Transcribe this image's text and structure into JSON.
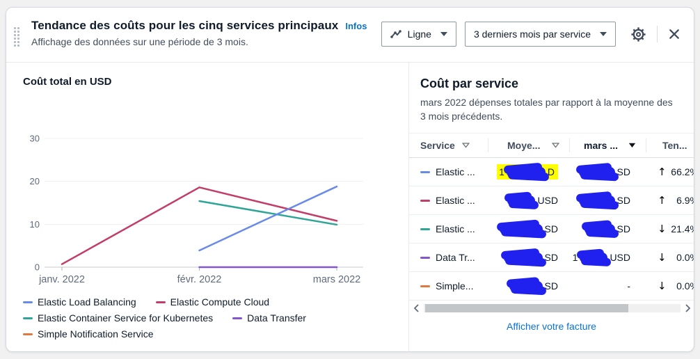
{
  "widget": {
    "title": "Tendance des coûts pour les cinq services principaux",
    "infos_link": "Infos",
    "subtitle": "Affichage des données sur une période de 3 mois.",
    "chart_type_select": {
      "value": "Ligne"
    },
    "period_select": {
      "value": "3 derniers mois par service"
    }
  },
  "chart_data": {
    "type": "line",
    "title": "Coût total en USD",
    "x": [
      "janv. 2022",
      "févr. 2022",
      "mars 2022"
    ],
    "ylim": [
      0,
      30
    ],
    "yticks": [
      0,
      10,
      20,
      30
    ],
    "grid": true,
    "legend_position": "bottom",
    "series": [
      {
        "name": "Elastic Load Balancing",
        "color": "#688ae8",
        "values": [
          null,
          3.9,
          18.8
        ]
      },
      {
        "name": "Elastic Compute Cloud",
        "color": "#c33d69",
        "values": [
          0.7,
          18.6,
          10.8
        ]
      },
      {
        "name": "Elastic Container Service for Kubernetes",
        "color": "#2ea597",
        "values": [
          null,
          15.4,
          9.9
        ]
      },
      {
        "name": "Data Transfer",
        "color": "#8456ce",
        "values": [
          null,
          0,
          0
        ]
      },
      {
        "name": "Simple Notification Service",
        "color": "#e07941",
        "values": [
          null,
          null,
          null
        ]
      }
    ]
  },
  "table_panel": {
    "title": "Coût par service",
    "subtitle": "mars 2022 dépenses totales par rapport à la moyenne des 3 mois précédents.",
    "columns": [
      {
        "label": "Service"
      },
      {
        "label": "Moye..."
      },
      {
        "label": "mars ..."
      },
      {
        "label": "Ten..."
      }
    ],
    "rows": [
      {
        "service": "Elastic ...",
        "color": "#688ae8",
        "moye_prefix": "1",
        "moye_suffix": "D",
        "mars_suffix": "SD",
        "trend_arrow": "↑",
        "trend_value": "66.2%",
        "redacted": true,
        "highlighted": true
      },
      {
        "service": "Elastic ...",
        "color": "#c33d69",
        "moye_suffix": "USD",
        "mars_suffix": "SD",
        "trend_arrow": "↑",
        "trend_value": "6.9%",
        "redacted": true
      },
      {
        "service": "Elastic ...",
        "color": "#2ea597",
        "moye_suffix": "SD",
        "mars_suffix": "SD",
        "trend_arrow": "↓",
        "trend_value": "21.4%",
        "redacted": true
      },
      {
        "service": "Data Tr...",
        "color": "#8456ce",
        "moye_suffix": "SD",
        "mars_prefix": "1",
        "mars_suffix": "USD",
        "trend_arrow": "↓",
        "trend_value": "0.0%",
        "redacted": true
      },
      {
        "service": "Simple...",
        "color": "#e07941",
        "moye_suffix": "SD",
        "mars_value": "-",
        "trend_arrow": "↓",
        "trend_value": "0.0%",
        "redacted": true
      }
    ],
    "footer_link": "Afficher votre facture"
  }
}
